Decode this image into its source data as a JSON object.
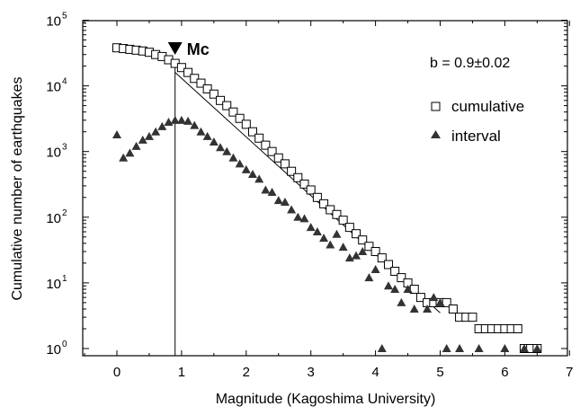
{
  "chart_data": {
    "type": "scatter",
    "xlabel": "Magnitude (Kagoshima University)",
    "ylabel": "Cumulative number of earthquakes",
    "xlim": [
      -0.5,
      7
    ],
    "ylim": [
      0.8,
      100000
    ],
    "yscale": "log",
    "x_ticks": [
      0,
      1,
      2,
      3,
      4,
      5,
      6,
      7
    ],
    "y_ticks": [
      {
        "value": 1,
        "base": "10",
        "exp": "0"
      },
      {
        "value": 10,
        "base": "10",
        "exp": "1"
      },
      {
        "value": 100,
        "base": "10",
        "exp": "2"
      },
      {
        "value": 1000,
        "base": "10",
        "exp": "3"
      },
      {
        "value": 10000,
        "base": "10",
        "exp": "4"
      },
      {
        "value": 100000,
        "base": "10",
        "exp": "5"
      }
    ],
    "grid": false,
    "legend_position": "top-right",
    "b_value_label": "b = 0.9±0.02",
    "mc": {
      "x": 0.9,
      "label": "Mc"
    },
    "fit_line": {
      "x": [
        0.9,
        5.0
      ],
      "y": [
        16000,
        3.5
      ]
    },
    "series": [
      {
        "name": "cumulative",
        "marker": "square",
        "x": [
          0.0,
          0.1,
          0.2,
          0.3,
          0.4,
          0.5,
          0.6,
          0.7,
          0.8,
          0.9,
          1.0,
          1.1,
          1.2,
          1.3,
          1.4,
          1.5,
          1.6,
          1.7,
          1.8,
          1.9,
          2.0,
          2.1,
          2.2,
          2.3,
          2.4,
          2.5,
          2.6,
          2.7,
          2.8,
          2.9,
          3.0,
          3.1,
          3.2,
          3.3,
          3.4,
          3.5,
          3.6,
          3.7,
          3.8,
          3.9,
          4.0,
          4.1,
          4.2,
          4.3,
          4.4,
          4.5,
          4.6,
          4.7,
          4.8,
          4.9,
          5.0,
          5.1,
          5.2,
          5.3,
          5.4,
          5.5,
          5.6,
          5.7,
          5.8,
          5.9,
          6.0,
          6.1,
          6.2,
          6.3,
          6.4,
          6.5
        ],
        "y": [
          38000,
          37000,
          36000,
          35000,
          34000,
          32500,
          30000,
          28000,
          25000,
          22000,
          19000,
          16000,
          13000,
          11000,
          9000,
          7500,
          6000,
          5000,
          4000,
          3200,
          2600,
          2000,
          1600,
          1250,
          1000,
          800,
          650,
          500,
          400,
          320,
          260,
          200,
          160,
          130,
          110,
          90,
          70,
          56,
          45,
          36,
          30,
          24,
          19,
          15,
          12,
          10,
          8,
          6,
          5,
          5,
          5,
          5,
          4,
          3,
          3,
          3,
          2,
          2,
          2,
          2,
          2,
          2,
          2,
          1,
          1,
          1
        ]
      },
      {
        "name": "interval",
        "marker": "triangle",
        "x": [
          0.0,
          0.1,
          0.2,
          0.3,
          0.4,
          0.5,
          0.6,
          0.7,
          0.8,
          0.9,
          1.0,
          1.1,
          1.2,
          1.3,
          1.4,
          1.5,
          1.6,
          1.7,
          1.8,
          1.9,
          2.0,
          2.1,
          2.2,
          2.3,
          2.4,
          2.5,
          2.6,
          2.7,
          2.8,
          2.9,
          3.0,
          3.1,
          3.2,
          3.3,
          3.4,
          3.5,
          3.6,
          3.7,
          3.8,
          3.9,
          4.0,
          4.1,
          4.2,
          4.3,
          4.4,
          4.5,
          4.6,
          4.8,
          4.9,
          5.0,
          5.1,
          5.3,
          5.6,
          6.0,
          6.3,
          6.5
        ],
        "y": [
          1800,
          800,
          950,
          1200,
          1500,
          1700,
          2000,
          2400,
          2800,
          3000,
          3000,
          2900,
          2500,
          2000,
          1700,
          1400,
          1150,
          1000,
          800,
          650,
          530,
          450,
          380,
          260,
          240,
          180,
          170,
          130,
          100,
          95,
          70,
          60,
          48,
          38,
          55,
          35,
          24,
          26,
          30,
          12,
          16,
          1,
          9,
          8,
          5,
          8,
          4,
          4,
          6,
          5,
          1,
          1,
          1,
          1,
          1,
          1
        ]
      }
    ]
  }
}
